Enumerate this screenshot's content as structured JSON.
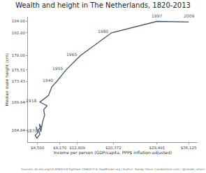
{
  "chart_data": {
    "type": "line",
    "title": "Wealth and height in The Netherlands, 1820-2013",
    "x_label": "Income per person (GDP/capita, PPP$ inflation-adjusted)",
    "y_label": "Median male height (cm)",
    "caption": "Sources: dx.doi.org/10.6084/m9.figshare.1066523 & GapMinder.org | Author: Randy Olson (randalolson.com / @randal_olson)",
    "color": "#3b566e",
    "x": [
      4200,
      4600,
      4000,
      4400,
      5000,
      4700,
      5200,
      4900,
      5200,
      5600,
      6000,
      5800,
      6500,
      5000,
      6800,
      7500,
      8500,
      10500,
      13500,
      20000,
      29491,
      36125
    ],
    "values": [
      165.5,
      164.5,
      164.0,
      163.5,
      164.2,
      165.0,
      165.5,
      166.0,
      164.6,
      166.5,
      167.5,
      168.5,
      169.2,
      169.84,
      171.0,
      172.5,
      173.43,
      175.51,
      178.0,
      182.0,
      184.0,
      183.9
    ],
    "point_labels": [
      null,
      null,
      null,
      null,
      null,
      null,
      null,
      null,
      "1870",
      null,
      null,
      null,
      null,
      "1918",
      null,
      null,
      "1940",
      "1955",
      "1965",
      "1980",
      "1997",
      "2009"
    ],
    "xlim": [
      2500,
      38000
    ],
    "ylim": [
      162.8,
      184.8
    ],
    "xticks": [
      {
        "value": 4500,
        "label": "$4,500"
      },
      {
        "value": 9170,
        "label": "$9,170"
      },
      {
        "value": 12809,
        "label": "$12,809"
      },
      {
        "value": 20372,
        "label": "$20,372"
      },
      {
        "value": 29491,
        "label": "$29,491"
      },
      {
        "value": 36125,
        "label": "$36,125"
      }
    ],
    "yticks": [
      164.84,
      169.84,
      173.43,
      175.51,
      {
        "value": 178,
        "label": "178.00"
      },
      {
        "value": 182,
        "label": "182.00"
      },
      {
        "value": 184,
        "label": "184.00"
      }
    ],
    "grid": false,
    "marker": "none"
  }
}
